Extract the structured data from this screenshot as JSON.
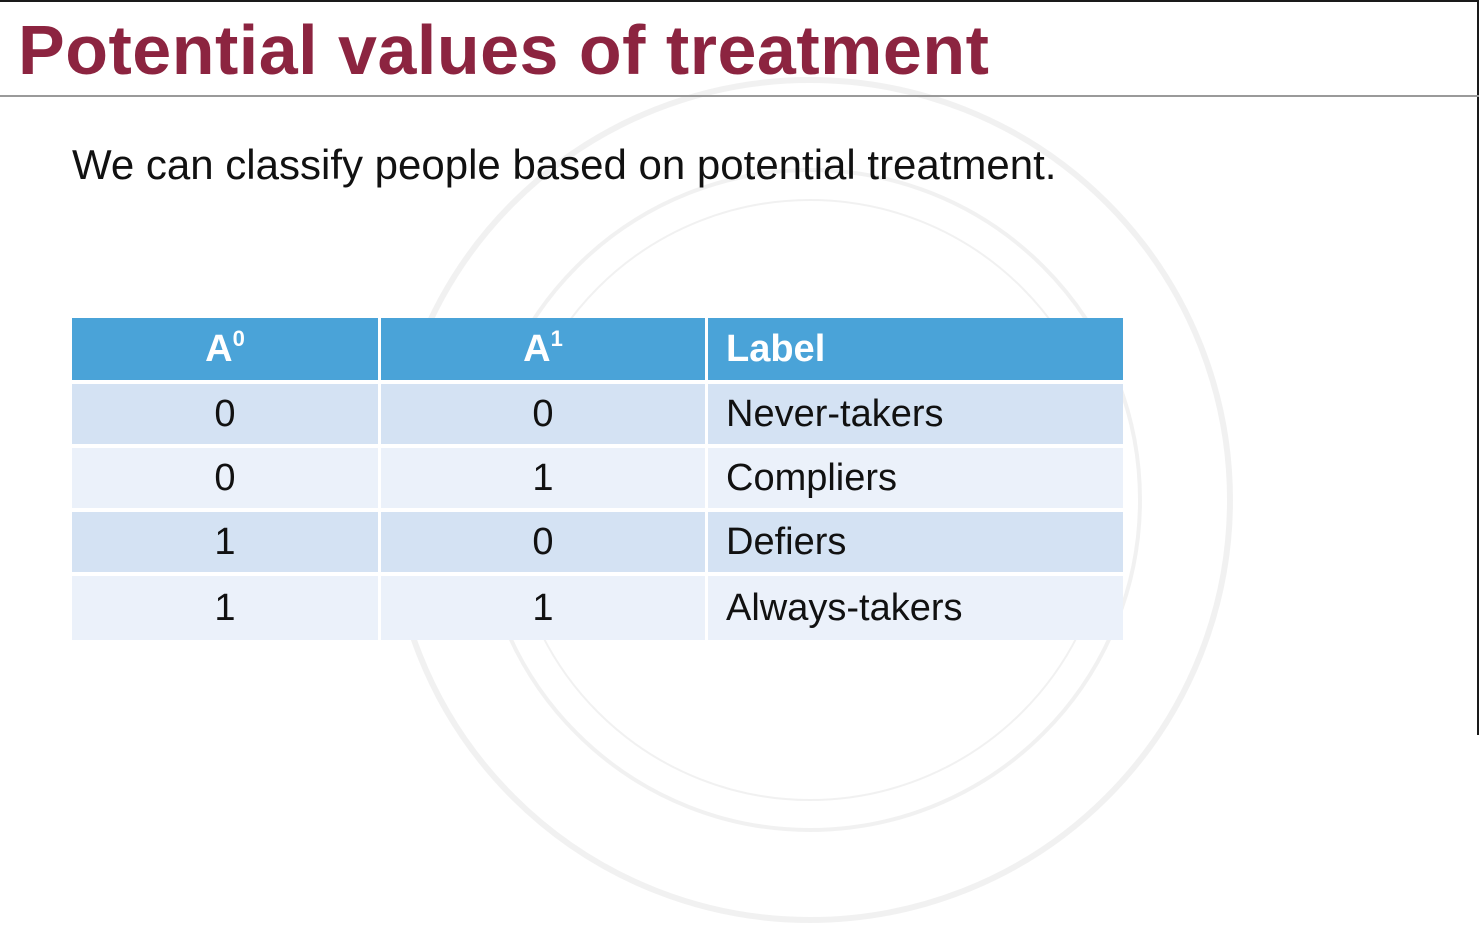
{
  "slide": {
    "title": "Potential values of treatment",
    "intro_text": "We can classify people based on potential treatment."
  },
  "table": {
    "headers": [
      {
        "base": "A",
        "sup": "0"
      },
      {
        "base": "A",
        "sup": "1"
      },
      {
        "base": "Label",
        "sup": ""
      }
    ],
    "rows": [
      {
        "a0": "0",
        "a1": "0",
        "label": "Never-takers"
      },
      {
        "a0": "0",
        "a1": "1",
        "label": "Compliers"
      },
      {
        "a0": "1",
        "a1": "0",
        "label": "Defiers"
      },
      {
        "a0": "1",
        "a1": "1",
        "label": "Always-takers"
      }
    ]
  },
  "colors": {
    "title": "#8c2440",
    "header_bg": "#4aa3d8",
    "row_odd_bg": "#d4e2f3",
    "row_even_bg": "#ebf1fa"
  }
}
